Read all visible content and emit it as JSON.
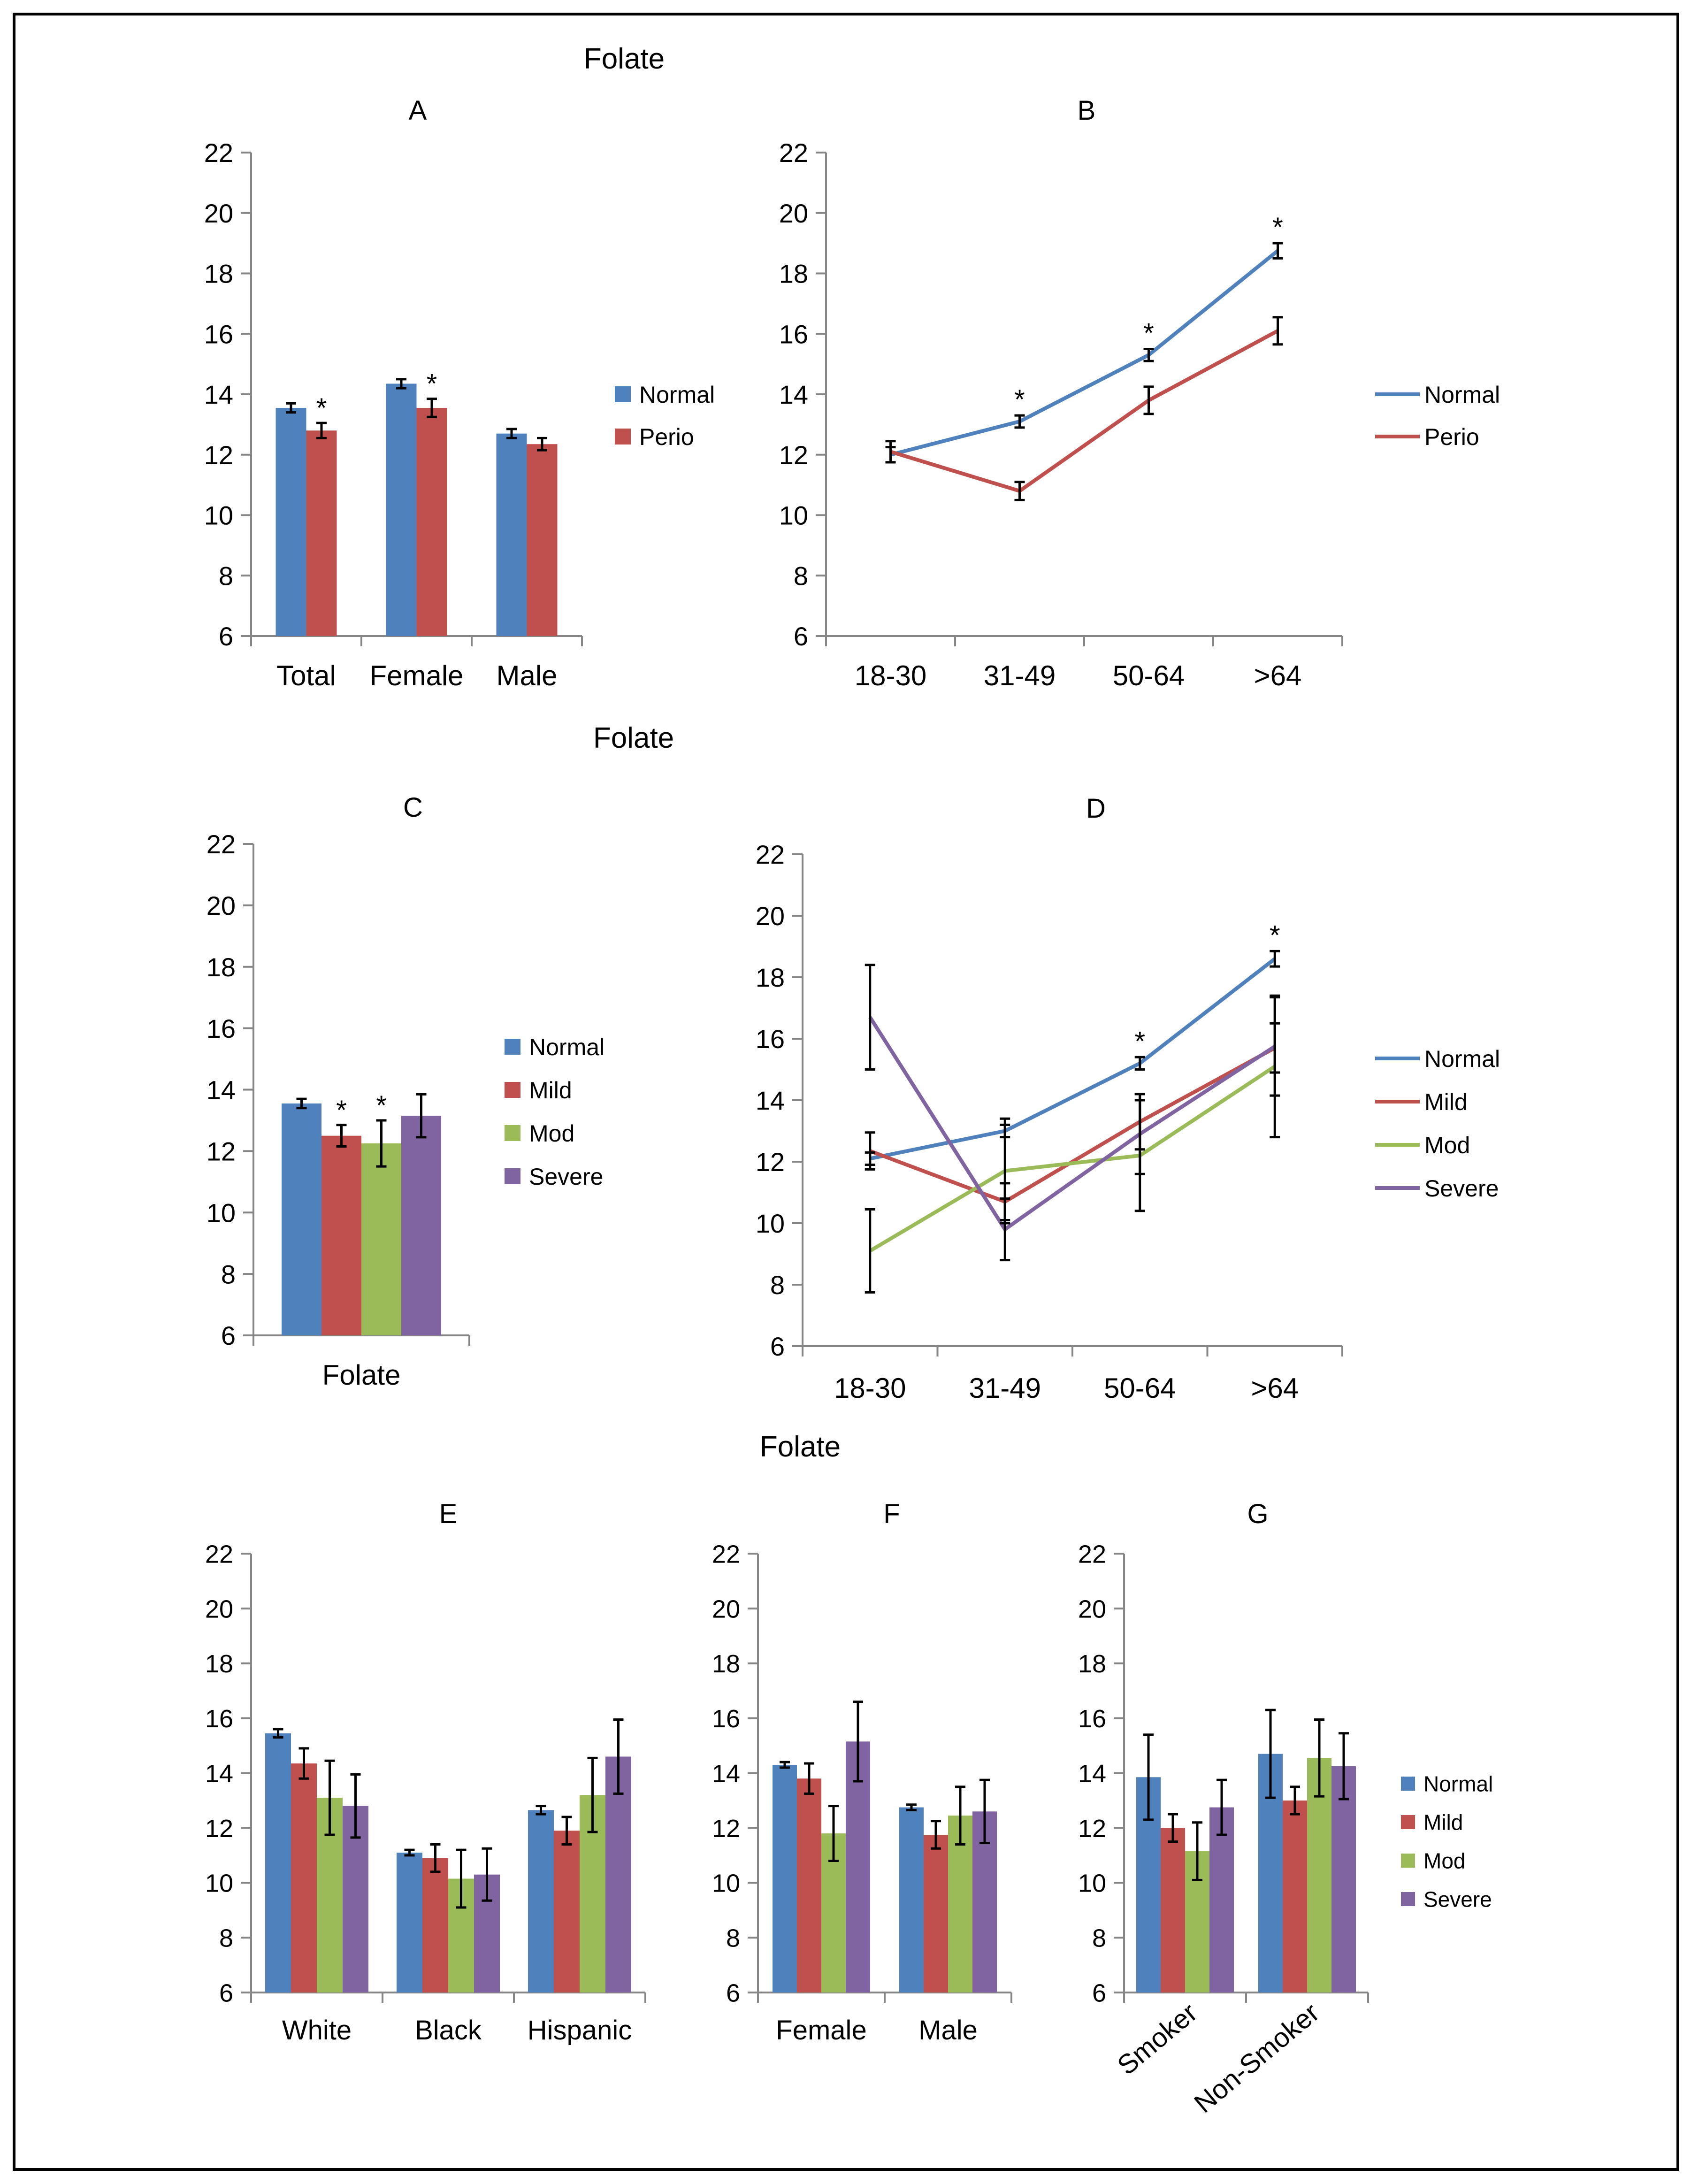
{
  "colors": {
    "normal": "#4F81BD",
    "perio": "#C0504D",
    "mild": "#C0504D",
    "mod": "#9BBB59",
    "severe": "#8064A2",
    "axis": "#868686",
    "frame": "#000000"
  },
  "section_titles": [
    "Folate",
    "Folate",
    "Folate"
  ],
  "chart_data": [
    {
      "id": "A",
      "type": "bar",
      "title": "A",
      "categories": [
        "Total",
        "Female",
        "Male"
      ],
      "ylim": [
        6,
        22
      ],
      "yticks": [
        6,
        8,
        10,
        12,
        14,
        16,
        18,
        20,
        22
      ],
      "legend_position": "right",
      "series": [
        {
          "name": "Normal",
          "color": "#4F81BD",
          "values": [
            13.55,
            14.35,
            12.7
          ],
          "errors": [
            0.15,
            0.15,
            0.15
          ]
        },
        {
          "name": "Perio",
          "color": "#C0504D",
          "values": [
            12.8,
            13.55,
            12.35
          ],
          "errors": [
            0.25,
            0.3,
            0.2
          ]
        }
      ],
      "annotations": [
        {
          "text": "*",
          "category": 0,
          "series": 1
        },
        {
          "text": "*",
          "category": 1,
          "series": 1
        }
      ]
    },
    {
      "id": "B",
      "type": "line",
      "title": "B",
      "categories": [
        "18-30",
        "31-49",
        "50-64",
        ">64"
      ],
      "ylim": [
        6,
        22
      ],
      "yticks": [
        6,
        8,
        10,
        12,
        14,
        16,
        18,
        20,
        22
      ],
      "legend_position": "right",
      "series": [
        {
          "name": "Normal",
          "color": "#4F81BD",
          "values": [
            12.0,
            13.1,
            15.3,
            18.75
          ],
          "errors": [
            0.25,
            0.2,
            0.2,
            0.25
          ]
        },
        {
          "name": "Perio",
          "color": "#C0504D",
          "values": [
            12.1,
            10.8,
            13.8,
            16.1
          ],
          "errors": [
            0.35,
            0.3,
            0.45,
            0.45
          ]
        }
      ],
      "annotations": [
        {
          "text": "*",
          "category": 1,
          "series": 0
        },
        {
          "text": "*",
          "category": 2,
          "series": 0
        },
        {
          "text": "*",
          "category": 3,
          "series": 0
        }
      ]
    },
    {
      "id": "C",
      "type": "bar",
      "title": "C",
      "categories": [
        "Folate"
      ],
      "ylim": [
        6,
        22
      ],
      "yticks": [
        6,
        8,
        10,
        12,
        14,
        16,
        18,
        20,
        22
      ],
      "legend_position": "right",
      "series": [
        {
          "name": "Normal",
          "color": "#4F81BD",
          "values": [
            13.55
          ],
          "errors": [
            0.15
          ]
        },
        {
          "name": "Mild",
          "color": "#C0504D",
          "values": [
            12.5
          ],
          "errors": [
            0.35
          ]
        },
        {
          "name": "Mod",
          "color": "#9BBB59",
          "values": [
            12.25
          ],
          "errors": [
            0.75
          ]
        },
        {
          "name": "Severe",
          "color": "#8064A2",
          "values": [
            13.15
          ],
          "errors": [
            0.7
          ]
        }
      ],
      "annotations": [
        {
          "text": "*",
          "category": 0,
          "series": 1
        },
        {
          "text": "*",
          "category": 0,
          "series": 2
        }
      ]
    },
    {
      "id": "D",
      "type": "line",
      "title": "D",
      "categories": [
        "18-30",
        "31-49",
        "50-64",
        ">64"
      ],
      "ylim": [
        6,
        22
      ],
      "yticks": [
        6,
        8,
        10,
        12,
        14,
        16,
        18,
        20,
        22
      ],
      "legend_position": "right",
      "series": [
        {
          "name": "Normal",
          "color": "#4F81BD",
          "values": [
            12.1,
            13.0,
            15.2,
            18.6
          ],
          "errors": [
            0.2,
            0.2,
            0.2,
            0.25
          ]
        },
        {
          "name": "Mild",
          "color": "#C0504D",
          "values": [
            12.35,
            10.7,
            13.3,
            15.7
          ],
          "errors": [
            0.6,
            0.6,
            0.9,
            0.8
          ]
        },
        {
          "name": "Mod",
          "color": "#9BBB59",
          "values": [
            9.1,
            11.7,
            12.2,
            15.1
          ],
          "errors": [
            1.35,
            1.7,
            1.8,
            2.3
          ]
        },
        {
          "name": "Severe",
          "color": "#8064A2",
          "values": [
            16.7,
            9.8,
            12.9,
            15.75
          ],
          "errors": [
            1.7,
            1.0,
            1.3,
            1.6
          ]
        }
      ],
      "annotations": [
        {
          "text": "*",
          "category": 2,
          "series": 0
        },
        {
          "text": "*",
          "category": 3,
          "series": 0
        }
      ]
    },
    {
      "id": "E",
      "type": "bar",
      "title": "E",
      "categories": [
        "White",
        "Black",
        "Hispanic"
      ],
      "ylim": [
        6,
        22
      ],
      "yticks": [
        6,
        8,
        10,
        12,
        14,
        16,
        18,
        20,
        22
      ],
      "series": [
        {
          "name": "Normal",
          "color": "#4F81BD",
          "values": [
            15.45,
            11.1,
            12.65
          ],
          "errors": [
            0.15,
            0.1,
            0.15
          ]
        },
        {
          "name": "Mild",
          "color": "#C0504D",
          "values": [
            14.35,
            10.9,
            11.9
          ],
          "errors": [
            0.55,
            0.5,
            0.5
          ]
        },
        {
          "name": "Mod",
          "color": "#9BBB59",
          "values": [
            13.1,
            10.15,
            13.2
          ],
          "errors": [
            1.35,
            1.05,
            1.35
          ]
        },
        {
          "name": "Severe",
          "color": "#8064A2",
          "values": [
            12.8,
            10.3,
            14.6
          ],
          "errors": [
            1.15,
            0.95,
            1.35
          ]
        }
      ]
    },
    {
      "id": "F",
      "type": "bar",
      "title": "F",
      "categories": [
        "Female",
        "Male"
      ],
      "ylim": [
        6,
        22
      ],
      "yticks": [
        6,
        8,
        10,
        12,
        14,
        16,
        18,
        20,
        22
      ],
      "series": [
        {
          "name": "Normal",
          "color": "#4F81BD",
          "values": [
            14.3,
            12.75
          ],
          "errors": [
            0.1,
            0.1
          ]
        },
        {
          "name": "Mild",
          "color": "#C0504D",
          "values": [
            13.8,
            11.75
          ],
          "errors": [
            0.55,
            0.5
          ]
        },
        {
          "name": "Mod",
          "color": "#9BBB59",
          "values": [
            11.8,
            12.45
          ],
          "errors": [
            1.0,
            1.05
          ]
        },
        {
          "name": "Severe",
          "color": "#8064A2",
          "values": [
            15.15,
            12.6
          ],
          "errors": [
            1.45,
            1.15
          ]
        }
      ]
    },
    {
      "id": "G",
      "type": "bar",
      "title": "G",
      "categories": [
        "Smoker",
        "Non-Smoker"
      ],
      "category_label_rotation": -40,
      "ylim": [
        6,
        22
      ],
      "yticks": [
        6,
        8,
        10,
        12,
        14,
        16,
        18,
        20,
        22
      ],
      "legend_position": "right",
      "series": [
        {
          "name": "Normal",
          "color": "#4F81BD",
          "values": [
            13.85,
            14.7
          ],
          "errors": [
            1.55,
            1.6
          ]
        },
        {
          "name": "Mild",
          "color": "#C0504D",
          "values": [
            12.0,
            13.0
          ],
          "errors": [
            0.5,
            0.5
          ]
        },
        {
          "name": "Mod",
          "color": "#9BBB59",
          "values": [
            11.15,
            14.55
          ],
          "errors": [
            1.05,
            1.4
          ]
        },
        {
          "name": "Severe",
          "color": "#8064A2",
          "values": [
            12.75,
            14.25
          ],
          "errors": [
            1.0,
            1.2
          ]
        }
      ]
    }
  ]
}
